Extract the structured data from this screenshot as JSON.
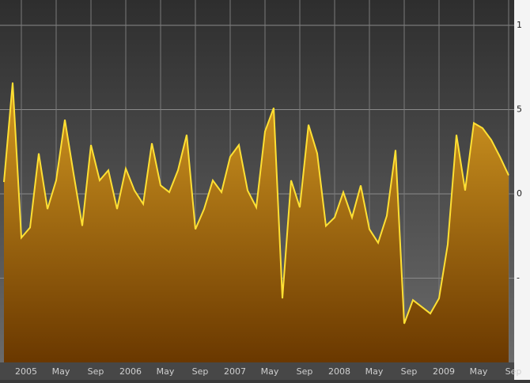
{
  "chart_data": {
    "type": "area",
    "categories": [
      null,
      null,
      "2005",
      null,
      null,
      null,
      "May",
      null,
      null,
      null,
      "Sep",
      null,
      null,
      null,
      "2006",
      null,
      null,
      null,
      "May",
      null,
      null,
      null,
      "Sep",
      null,
      null,
      null,
      "2007",
      null,
      null,
      null,
      "May",
      null,
      null,
      null,
      "Sep",
      null,
      null,
      null,
      "2008",
      null,
      null,
      null,
      "May",
      null,
      null,
      null,
      "Sep",
      null,
      null,
      null,
      "2009",
      null,
      null,
      null,
      "May",
      null,
      null,
      null,
      "Sep"
    ],
    "values": [
      0.7,
      6.6,
      -2.6,
      -2.0,
      2.4,
      -0.9,
      0.8,
      4.4,
      1.2,
      -1.9,
      2.9,
      0.8,
      1.4,
      -0.9,
      1.5,
      0.2,
      -0.6,
      3.0,
      0.5,
      0.1,
      1.4,
      3.5,
      -2.1,
      -0.9,
      0.8,
      0.1,
      2.2,
      2.9,
      0.2,
      -0.8,
      3.7,
      5.1,
      -6.2,
      0.8,
      -0.8,
      4.1,
      2.4,
      -1.9,
      -1.4,
      0.1,
      -1.4,
      0.5,
      -2.1,
      -2.9,
      -1.3,
      2.6,
      -7.7,
      -6.3,
      -6.7,
      -7.1,
      -6.2,
      -3.0,
      3.5,
      0.2,
      4.2,
      3.9,
      3.2,
      2.2,
      1.1
    ],
    "color": "#ffe033",
    "ylim": [
      -10,
      11.5
    ],
    "yticks": [
      {
        "value": 10,
        "label": "1"
      },
      5,
      0,
      {
        "value": -5,
        "label": "-"
      }
    ],
    "grid": true
  }
}
